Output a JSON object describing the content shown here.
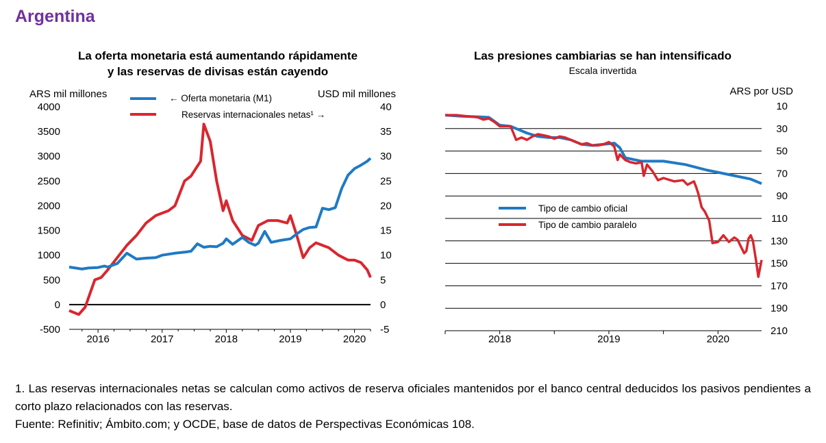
{
  "country": "Argentina",
  "colors": {
    "blue": "#1f7ac4",
    "red": "#d9262e",
    "title": "#7030a0"
  },
  "footnote": "1. Las reservas internacionales netas se calculan como activos de reserva oficiales mantenidos por el banco central deducidos los pasivos pendientes a corto plazo relacionados con las reservas.",
  "source": "Fuente: Refinitiv; Ámbito.com; y OCDE, base de datos de Perspectivas Económicas 108.",
  "chart_data": [
    {
      "type": "line",
      "title_line1": "La oferta monetaria está aumentando rápidamente",
      "title_line2": "y las reservas de divisas están cayendo",
      "ylabel_left": "ARS mil millones",
      "ylabel_right": "USD mil millones",
      "ylim_left": [
        -500,
        4000
      ],
      "ylim_right": [
        -5,
        40
      ],
      "yticks_left": [
        "4000",
        "3500",
        "3000",
        "2500",
        "2000",
        "1500",
        "1000",
        "500",
        "0",
        "-500"
      ],
      "yticks_right": [
        "40",
        "35",
        "30",
        "25",
        "20",
        "15",
        "10",
        "5",
        "0",
        "-5"
      ],
      "x_range": [
        2015.55,
        2020.25
      ],
      "x_ticks": [
        {
          "label": "2016",
          "value": 2016.0
        },
        {
          "label": "2017",
          "value": 2017.0
        },
        {
          "label": "2018",
          "value": 2018.0
        },
        {
          "label": "2019",
          "value": 2019.0
        },
        {
          "label": "2020",
          "value": 2020.0
        }
      ],
      "zero_line": true,
      "series": [
        {
          "name": "← Oferta monetaria (M1)",
          "axis": "left",
          "color": "#1f7ac4",
          "x": [
            2015.55,
            2015.75,
            2015.85,
            2016.0,
            2016.1,
            2016.15,
            2016.3,
            2016.45,
            2016.6,
            2016.75,
            2016.9,
            2017.0,
            2017.2,
            2017.35,
            2017.45,
            2017.55,
            2017.65,
            2017.75,
            2017.85,
            2017.95,
            2018.0,
            2018.1,
            2018.25,
            2018.35,
            2018.45,
            2018.5,
            2018.6,
            2018.7,
            2018.85,
            2019.0,
            2019.1,
            2019.2,
            2019.3,
            2019.4,
            2019.5,
            2019.6,
            2019.7,
            2019.8,
            2019.9,
            2020.0,
            2020.1,
            2020.2,
            2020.25
          ],
          "values": [
            760,
            720,
            740,
            750,
            780,
            760,
            830,
            1040,
            920,
            940,
            950,
            1000,
            1040,
            1060,
            1080,
            1230,
            1160,
            1180,
            1170,
            1240,
            1330,
            1220,
            1360,
            1260,
            1200,
            1240,
            1480,
            1260,
            1300,
            1330,
            1430,
            1520,
            1560,
            1570,
            1950,
            1920,
            1960,
            2350,
            2620,
            2750,
            2820,
            2900,
            2960
          ]
        },
        {
          "name": "Reservas internacionales netas¹ →",
          "axis": "right",
          "color": "#d9262e",
          "x": [
            2015.55,
            2015.7,
            2015.8,
            2015.95,
            2016.05,
            2016.15,
            2016.3,
            2016.45,
            2016.6,
            2016.75,
            2016.9,
            2017.0,
            2017.1,
            2017.2,
            2017.35,
            2017.45,
            2017.6,
            2017.65,
            2017.75,
            2017.85,
            2017.95,
            2018.0,
            2018.1,
            2018.25,
            2018.4,
            2018.5,
            2018.65,
            2018.8,
            2018.95,
            2019.0,
            2019.1,
            2019.2,
            2019.3,
            2019.4,
            2019.5,
            2019.6,
            2019.75,
            2019.9,
            2020.0,
            2020.1,
            2020.2,
            2020.25
          ],
          "values": [
            -1.2,
            -2,
            -0.5,
            5,
            5.5,
            7,
            9.5,
            12,
            14,
            16.5,
            18,
            18.5,
            19,
            20,
            25,
            26,
            29,
            36.5,
            33,
            25,
            19,
            21,
            17,
            14,
            13,
            16,
            17,
            17,
            16.5,
            18,
            14,
            9.5,
            11.5,
            12.5,
            12,
            11.5,
            10,
            9,
            9,
            8.5,
            7,
            5.5
          ]
        }
      ]
    },
    {
      "type": "line",
      "title": "Las presiones cambiarias se han intensificado",
      "subtitle": "Escala invertida",
      "ylabel_right": "ARS por USD",
      "ylim": [
        10,
        210
      ],
      "inverted": true,
      "yticks": [
        "10",
        "30",
        "50",
        "70",
        "90",
        "110",
        "130",
        "150",
        "170",
        "190",
        "210"
      ],
      "x_range": [
        2017.5,
        2020.4
      ],
      "x_ticks": [
        {
          "label": "2018",
          "value": 2018.0
        },
        {
          "label": "2019",
          "value": 2019.0
        },
        {
          "label": "2020",
          "value": 2020.0
        }
      ],
      "series": [
        {
          "name": "Tipo de cambio oficial",
          "color": "#1f7ac4",
          "x": [
            2017.5,
            2017.65,
            2017.8,
            2017.9,
            2018.0,
            2018.1,
            2018.15,
            2018.25,
            2018.35,
            2018.45,
            2018.55,
            2018.65,
            2018.75,
            2018.85,
            2018.95,
            2019.05,
            2019.1,
            2019.15,
            2019.3,
            2019.5,
            2019.7,
            2019.9,
            2020.1,
            2020.3,
            2020.4
          ],
          "values": [
            18,
            19,
            19.5,
            20,
            27,
            28,
            30,
            34,
            37,
            38,
            38,
            40,
            44,
            45,
            44,
            43,
            47,
            56,
            59,
            59,
            62,
            67,
            71,
            75,
            79
          ]
        },
        {
          "name": "Tipo de cambio paralelo",
          "color": "#d9262e",
          "x": [
            2017.5,
            2017.6,
            2017.7,
            2017.8,
            2017.85,
            2017.9,
            2017.95,
            2018.0,
            2018.05,
            2018.1,
            2018.15,
            2018.2,
            2018.25,
            2018.3,
            2018.35,
            2018.4,
            2018.45,
            2018.5,
            2018.55,
            2018.6,
            2018.65,
            2018.7,
            2018.75,
            2018.8,
            2018.85,
            2018.9,
            2018.95,
            2019.0,
            2019.05,
            2019.08,
            2019.1,
            2019.12,
            2019.15,
            2019.2,
            2019.25,
            2019.3,
            2019.32,
            2019.35,
            2019.4,
            2019.45,
            2019.5,
            2019.6,
            2019.68,
            2019.72,
            2019.78,
            2019.8,
            2019.82,
            2019.85,
            2019.88,
            2019.92,
            2019.95,
            2020.0,
            2020.05,
            2020.1,
            2020.15,
            2020.18,
            2020.2,
            2020.22,
            2020.24,
            2020.26,
            2020.28,
            2020.3,
            2020.32,
            2020.35,
            2020.37,
            2020.4
          ],
          "values": [
            18,
            18,
            19,
            20,
            22,
            21,
            24,
            28,
            28,
            28,
            40,
            38,
            40,
            37,
            35,
            36,
            37,
            39,
            37,
            38,
            40,
            42,
            44,
            43,
            45,
            45,
            44,
            42,
            46,
            58,
            53,
            55,
            58,
            60,
            61,
            60,
            72,
            62,
            68,
            76,
            74,
            77,
            76,
            80,
            77,
            82,
            88,
            100,
            104,
            112,
            132,
            131,
            125,
            131,
            127,
            129,
            133,
            137,
            141,
            139,
            128,
            125,
            130,
            148,
            162,
            147
          ]
        }
      ]
    }
  ]
}
